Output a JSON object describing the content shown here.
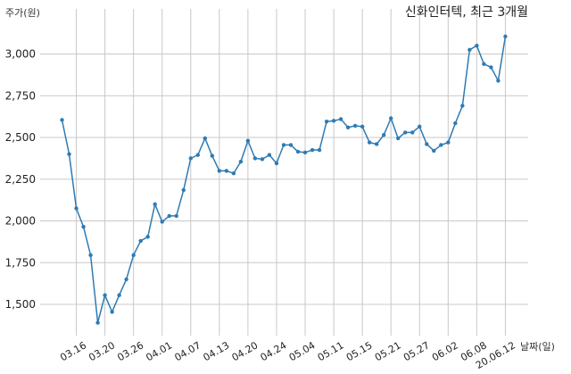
{
  "chart_data": {
    "type": "line",
    "title": "신화인터텍, 최근 3개월",
    "xlabel": "날짜(일)",
    "ylabel": "주가(원)",
    "ylim": [
      1300,
      3200
    ],
    "yticks": [
      1500,
      1750,
      2000,
      2250,
      2500,
      2750,
      3000
    ],
    "ytick_labels": [
      "1,500",
      "1,750",
      "2,000",
      "2,250",
      "2,500",
      "2,750",
      "3,000"
    ],
    "grid": true,
    "color": "#2e7bb4",
    "x_tick_indices": [
      2,
      6,
      10,
      14,
      18,
      22,
      26,
      30,
      34,
      38,
      42,
      46,
      50,
      54,
      58,
      62
    ],
    "x_tick_labels": [
      "03.16",
      "03.20",
      "03.26",
      "04.01",
      "04.07",
      "04.13",
      "04.20",
      "04.24",
      "05.04",
      "05.11",
      "05.15",
      "05.21",
      "05.27",
      "06.02",
      "06.08",
      "20.06.12"
    ],
    "series": [
      {
        "values": [
          2605,
          2400,
          2075,
          1965,
          1795,
          1390,
          1555,
          1455,
          1555,
          1650,
          1795,
          1880,
          1905,
          2100,
          1995,
          2030,
          2030,
          2185,
          2375,
          2395,
          2495,
          2390,
          2300,
          2300,
          2285,
          2355,
          2480,
          2375,
          2370,
          2395,
          2345,
          2455,
          2455,
          2415,
          2410,
          2425,
          2425,
          2595,
          2600,
          2610,
          2560,
          2570,
          2565,
          2470,
          2460,
          2515,
          2615,
          2495,
          2530,
          2530,
          2565,
          2460,
          2420,
          2455,
          2470,
          2585,
          2690,
          3025,
          3050,
          2940,
          2920,
          2840,
          3105
        ]
      }
    ]
  }
}
